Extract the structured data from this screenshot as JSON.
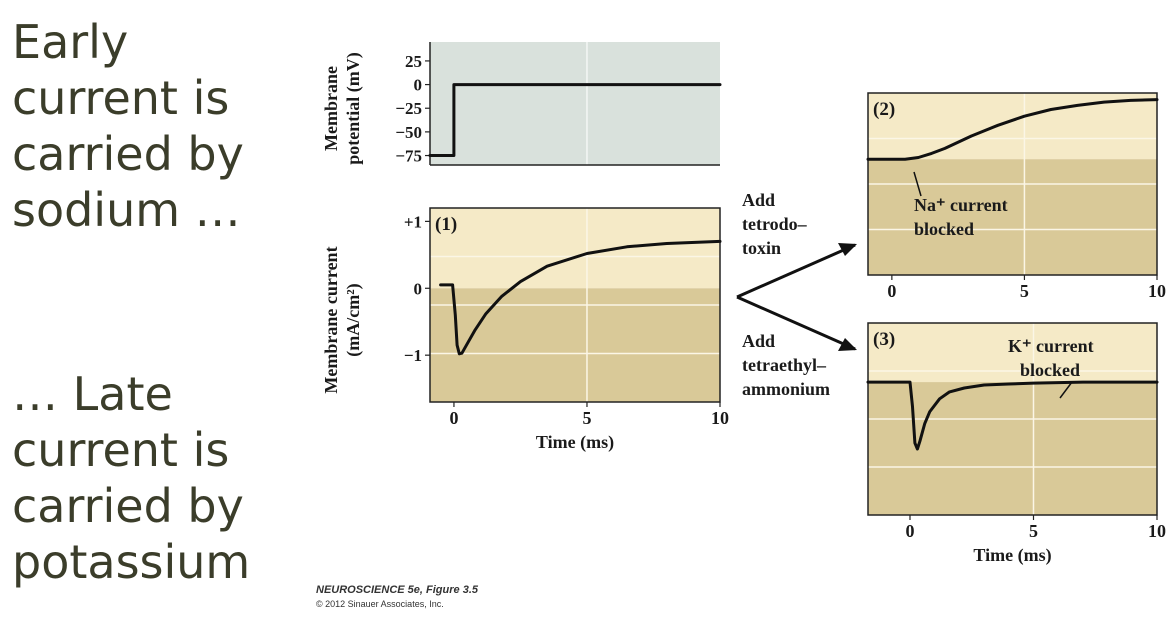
{
  "slide": {
    "early_lines": [
      "Early",
      "current is",
      "carried by",
      "sodium …"
    ],
    "late_lines": [
      "… Late",
      "current is",
      "carried by",
      "potassium"
    ]
  },
  "credit": {
    "title": "NEUROSCIENCE 5e, Figure 3.5",
    "copyright": "© 2012 Sinauer Associates, Inc."
  },
  "arrows": {
    "upper_label": [
      "Add",
      "tetrodo–",
      "toxin"
    ],
    "lower_label": [
      "Add",
      "tetraethyl–",
      "ammonium"
    ]
  },
  "colors": {
    "voltage_bg": "#d9e1dc",
    "panel_light": "#f5eac7",
    "panel_dark": "#d9c998",
    "grid": "#fbf6e6",
    "trace": "#111111",
    "slide_text": "#3b3d2a"
  },
  "chart_data": [
    {
      "id": "voltage",
      "type": "line",
      "title": "",
      "xlabel": "",
      "ylabel": [
        "Membrane",
        "potential (mV)"
      ],
      "xlim": [
        -0.9,
        10
      ],
      "ylim": [
        -85,
        45
      ],
      "yticks": [
        25,
        0,
        -25,
        -50,
        -75
      ],
      "ytick_labels": [
        "25",
        "0",
        "−25",
        "−50",
        "−75"
      ],
      "x": [
        -0.9,
        0,
        0,
        10
      ],
      "y": [
        -75,
        -75,
        0,
        0
      ]
    },
    {
      "id": "current_1",
      "type": "line",
      "title": "(1)",
      "xlabel": "Time (ms)",
      "ylabel": [
        "Membrane current",
        "(mA/cm²)"
      ],
      "xlim": [
        -0.9,
        10
      ],
      "ylim": [
        -1.7,
        1.2
      ],
      "xticks": [
        0,
        5,
        10
      ],
      "xtick_labels": [
        "0",
        "5",
        "10"
      ],
      "yticks": [
        1,
        0,
        -1
      ],
      "ytick_labels": [
        "+1",
        "0",
        "−1"
      ],
      "x": [
        -0.5,
        -0.05,
        0.05,
        0.12,
        0.2,
        0.3,
        0.5,
        0.8,
        1.2,
        1.8,
        2.5,
        3.5,
        5,
        6.5,
        8,
        10
      ],
      "y": [
        0.05,
        0.05,
        -0.4,
        -0.85,
        -0.98,
        -0.97,
        -0.83,
        -0.62,
        -0.38,
        -0.12,
        0.1,
        0.33,
        0.52,
        0.62,
        0.67,
        0.7
      ]
    },
    {
      "id": "current_2",
      "type": "line",
      "title": "(2)",
      "annotation": [
        "Na⁺ current",
        "blocked"
      ],
      "xlabel": "",
      "xlim": [
        -0.9,
        10
      ],
      "ylim": [
        -1.4,
        0.8
      ],
      "xticks": [
        0,
        5,
        10
      ],
      "xtick_labels": [
        "0",
        "5",
        "10"
      ],
      "x": [
        -0.9,
        0,
        0.5,
        1,
        1.5,
        2,
        3,
        4,
        5,
        6,
        7,
        8,
        9,
        10
      ],
      "y": [
        0,
        0,
        0,
        0.02,
        0.07,
        0.13,
        0.28,
        0.41,
        0.52,
        0.6,
        0.65,
        0.69,
        0.71,
        0.72
      ]
    },
    {
      "id": "current_3",
      "type": "line",
      "title": "(3)",
      "annotation": [
        "K⁺ current",
        "blocked"
      ],
      "xlabel": "Time (ms)",
      "xlim": [
        -1.7,
        10
      ],
      "ylim": [
        -1.35,
        0.6
      ],
      "xticks": [
        0,
        5,
        10
      ],
      "xtick_labels": [
        "0",
        "5",
        "10"
      ],
      "x": [
        -1.7,
        0,
        0.1,
        0.2,
        0.3,
        0.4,
        0.6,
        0.8,
        1.2,
        1.6,
        2.2,
        3,
        4,
        5,
        7,
        10
      ],
      "y": [
        0,
        0,
        -0.25,
        -0.62,
        -0.68,
        -0.6,
        -0.42,
        -0.3,
        -0.17,
        -0.1,
        -0.06,
        -0.03,
        -0.02,
        -0.01,
        0,
        0
      ]
    }
  ]
}
